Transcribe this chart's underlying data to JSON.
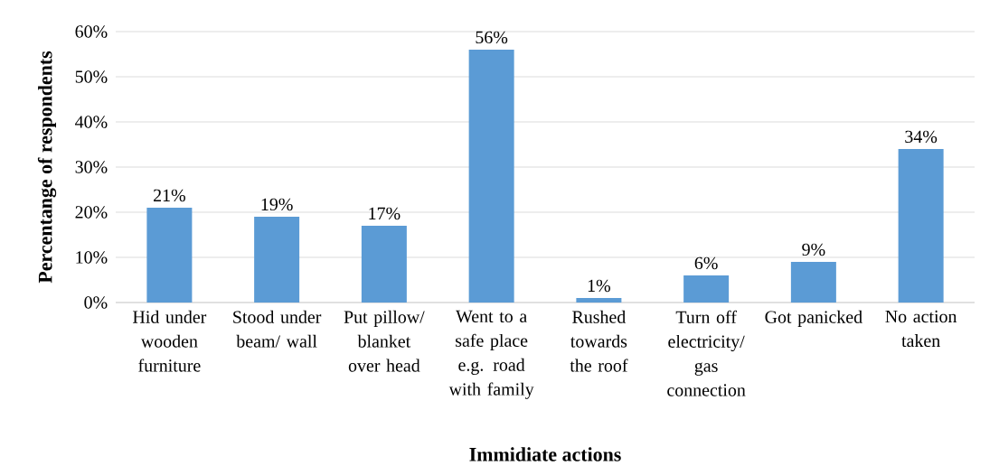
{
  "chart_data": {
    "type": "bar",
    "xlabel": "Immidiate actions",
    "ylabel": "Percentange of respondents",
    "categories": [
      "Hid under wooden furniture",
      "Stood under beam/ wall",
      "Put pillow/ blanket over head",
      "Went to a safe place e.g. road with family",
      "Rushed towards the roof",
      "Turn off electricity/ gas connection",
      "Got panicked",
      "No action taken"
    ],
    "values": [
      21,
      19,
      17,
      56,
      1,
      6,
      9,
      34
    ],
    "value_labels": [
      "21%",
      "19%",
      "17%",
      "56%",
      "1%",
      "6%",
      "9%",
      "34%"
    ],
    "color": "#5b9bd5",
    "ylim": [
      0,
      60
    ],
    "yticks": [
      {
        "value": 0,
        "label": "0%"
      },
      {
        "value": 10,
        "label": "10%"
      },
      {
        "value": 20,
        "label": "20%"
      },
      {
        "value": 30,
        "label": "30%"
      },
      {
        "value": 40,
        "label": "40%"
      },
      {
        "value": 50,
        "label": "50%"
      },
      {
        "value": 60,
        "label": "60%"
      }
    ],
    "grid": "y"
  }
}
